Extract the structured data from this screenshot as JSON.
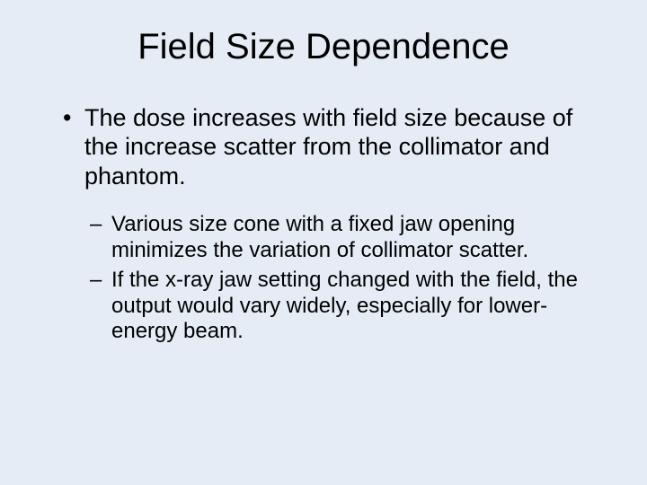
{
  "background_color": "#e5ecf5",
  "text_color": "#000000",
  "title": {
    "text": "Field Size Dependence",
    "fontsize": 40
  },
  "bullets": {
    "level1": [
      "The dose increases with field size because of the increase scatter from the collimator and phantom."
    ],
    "level2": [
      "Various size cone with a fixed jaw opening minimizes the variation of collimator scatter.",
      "If the x-ray jaw setting changed with the field, the output would vary widely, especially for lower-energy beam."
    ],
    "l1_fontsize": 27,
    "l2_fontsize": 24
  }
}
